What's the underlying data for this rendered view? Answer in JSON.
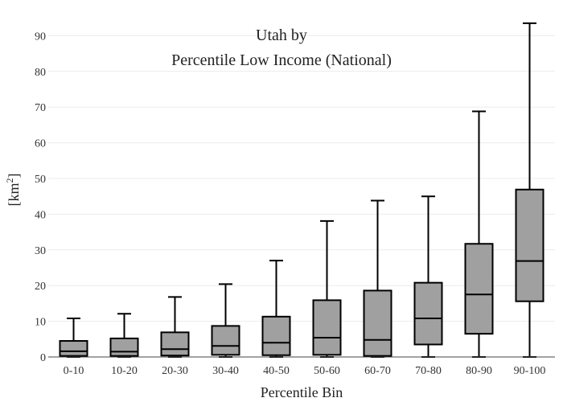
{
  "chart_data": {
    "type": "box",
    "title_line1": "Utah  by",
    "title_line2": "Percentile Low Income (National)",
    "xlabel": "Percentile Bin",
    "ylabel_main": "[km",
    "ylabel_sup": "2",
    "ylabel_close": "]",
    "ylim": [
      0,
      95
    ],
    "yticks": [
      0,
      10,
      20,
      30,
      40,
      50,
      60,
      70,
      80,
      90
    ],
    "grid": true,
    "colors": {
      "box_fill": "#a0a0a0",
      "line": "#000000",
      "grid": "#ececec"
    },
    "categories": [
      "0-10",
      "10-20",
      "20-30",
      "30-40",
      "40-50",
      "50-60",
      "60-70",
      "70-80",
      "80-90",
      "90-100"
    ],
    "boxes": [
      {
        "min": 0,
        "q1": 0.3,
        "median": 1.6,
        "q3": 4.5,
        "max": 10.8
      },
      {
        "min": 0,
        "q1": 0.3,
        "median": 1.5,
        "q3": 5.2,
        "max": 12.1
      },
      {
        "min": 0,
        "q1": 0.4,
        "median": 2.2,
        "q3": 6.9,
        "max": 16.8
      },
      {
        "min": 0,
        "q1": 0.6,
        "median": 3.1,
        "q3": 8.7,
        "max": 20.4
      },
      {
        "min": 0,
        "q1": 0.5,
        "median": 4.0,
        "q3": 11.3,
        "max": 27.0
      },
      {
        "min": 0,
        "q1": 0.6,
        "median": 5.4,
        "q3": 15.9,
        "max": 38.1
      },
      {
        "min": 0,
        "q1": 0.3,
        "median": 4.8,
        "q3": 18.6,
        "max": 43.8
      },
      {
        "min": 0,
        "q1": 3.5,
        "median": 10.8,
        "q3": 20.8,
        "max": 45.0
      },
      {
        "min": 0,
        "q1": 6.5,
        "median": 17.5,
        "q3": 31.7,
        "max": 68.8
      },
      {
        "min": 0,
        "q1": 15.6,
        "median": 26.9,
        "q3": 46.9,
        "max": 93.5
      }
    ]
  }
}
